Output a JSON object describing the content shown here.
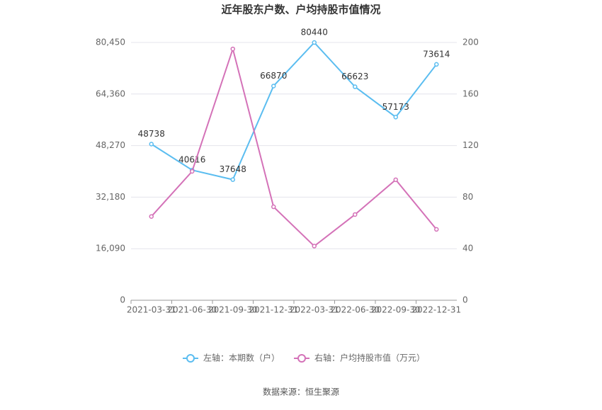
{
  "chart_data": {
    "type": "line",
    "title": "近年股东户数、户均持股市值情况",
    "categories": [
      "2021-03-31",
      "2021-06-30",
      "2021-09-30",
      "2021-12-31",
      "2022-03-31",
      "2022-06-30",
      "2022-09-30",
      "2022-12-31"
    ],
    "series": [
      {
        "name": "左轴：本期数（户）",
        "color": "#5bbdf0",
        "values": [
          48738,
          40616,
          37648,
          66870,
          80440,
          66623,
          57173,
          73614
        ],
        "show_labels": true
      },
      {
        "name": "右轴：户均持股市值（万元）",
        "color": "#d472b8",
        "axis": "y2",
        "values": [
          65,
          100,
          195,
          72.5,
          42,
          66.5,
          93.5,
          55
        ]
      }
    ],
    "ylim": [
      0,
      80450
    ],
    "yticks": [
      0,
      {
        "value": 16090,
        "label": "16,090"
      },
      {
        "value": 32180,
        "label": "32,180"
      },
      {
        "value": 48270,
        "label": "48,270"
      },
      {
        "value": 64360,
        "label": "64,360"
      },
      {
        "value": 80450,
        "label": "80,450"
      }
    ],
    "y2lim": [
      0,
      200
    ],
    "y2ticks": [
      0,
      40,
      80,
      120,
      160,
      200
    ],
    "grid": true,
    "legend": "bottom",
    "source": "数据来源：恒生聚源"
  }
}
